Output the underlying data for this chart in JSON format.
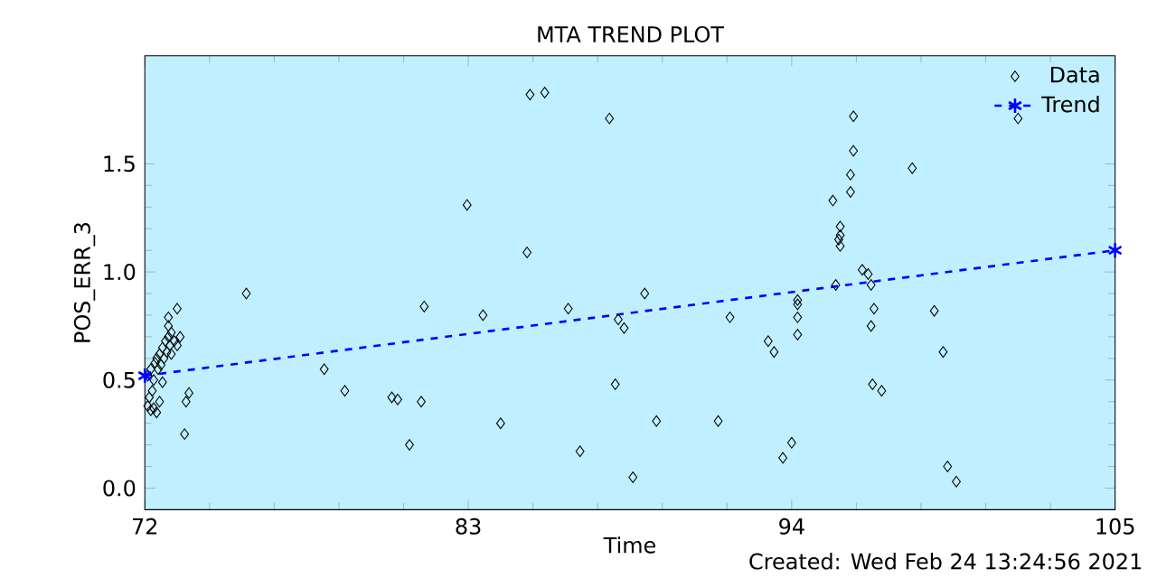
{
  "chart_data": {
    "type": "scatter",
    "title": "MTA TREND PLOT",
    "xlabel": "Time",
    "ylabel": "POS_ERR_3",
    "annotations": [
      "Created: Wed Feb 24 13:24:56 2021"
    ],
    "xlim": [
      72,
      105
    ],
    "xticks": [
      72,
      83,
      94,
      105
    ],
    "ylim": [
      -0.1,
      2.0
    ],
    "yticks": [
      {
        "value": 0,
        "label": "0.0"
      },
      {
        "value": 0.5,
        "label": "0.5"
      },
      {
        "value": 1,
        "label": "1.0"
      },
      {
        "value": 1.5,
        "label": "1.5"
      }
    ],
    "grid": false,
    "legend": "top right",
    "series": [
      {
        "name": "Data",
        "marker": "diamond",
        "color": "#000000",
        "x": [
          72.1,
          72.15,
          72.2,
          72.25,
          72.1,
          72.2,
          72.3,
          72.35,
          72.4,
          72.45,
          72.5,
          72.55,
          72.6,
          72.65,
          72.7,
          72.75,
          72.8,
          72.85,
          72.9,
          73.0,
          73.1,
          72.6,
          72.5,
          72.3,
          72.4,
          72.9,
          72.8,
          73.1,
          73.35,
          73.5,
          73.4,
          73.2,
          72.8,
          75.45,
          82.96,
          81.5,
          83.5,
          78.1,
          78.8,
          80.4,
          80.6,
          81.4,
          81.0,
          85.1,
          85.6,
          87.8,
          85.0,
          86.4,
          89.0,
          88.1,
          88.3,
          91.9,
          93.2,
          93.4,
          94.2,
          94.2,
          94.2,
          94.2,
          88.0,
          84.1,
          89.4,
          91.5,
          86.8,
          88.6,
          94.0,
          93.7,
          96.1,
          96.1,
          96.0,
          96.0,
          95.4,
          95.65,
          95.65,
          95.6,
          95.65,
          101.7,
          98.1,
          96.4,
          96.6,
          96.7,
          95.5,
          96.8,
          96.7,
          98.85,
          99.15,
          96.75,
          97.06,
          99.3,
          99.6
        ],
        "values": [
          0.38,
          0.42,
          0.36,
          0.45,
          0.52,
          0.55,
          0.5,
          0.58,
          0.6,
          0.55,
          0.62,
          0.57,
          0.65,
          0.6,
          0.68,
          0.63,
          0.7,
          0.66,
          0.72,
          0.68,
          0.66,
          0.49,
          0.4,
          0.37,
          0.35,
          0.62,
          0.79,
          0.83,
          0.25,
          0.44,
          0.4,
          0.7,
          0.75,
          0.9,
          1.31,
          0.84,
          0.8,
          0.55,
          0.45,
          0.42,
          0.41,
          0.4,
          0.2,
          1.82,
          1.83,
          1.71,
          1.09,
          0.83,
          0.9,
          0.78,
          0.74,
          0.79,
          0.68,
          0.63,
          0.87,
          0.85,
          0.79,
          0.71,
          0.48,
          0.3,
          0.31,
          0.31,
          0.17,
          0.05,
          0.21,
          0.14,
          1.72,
          1.56,
          1.45,
          1.37,
          1.33,
          1.21,
          1.17,
          1.15,
          1.12,
          1.71,
          1.48,
          1.01,
          0.99,
          0.94,
          0.94,
          0.83,
          0.75,
          0.82,
          0.63,
          0.48,
          0.45,
          0.1,
          0.03
        ]
      },
      {
        "name": "Trend",
        "type": "line",
        "line_style": "dashed",
        "marker": "cross",
        "color": "#0000ff",
        "x": [
          72,
          105
        ],
        "values": [
          0.52,
          1.1
        ]
      }
    ]
  }
}
